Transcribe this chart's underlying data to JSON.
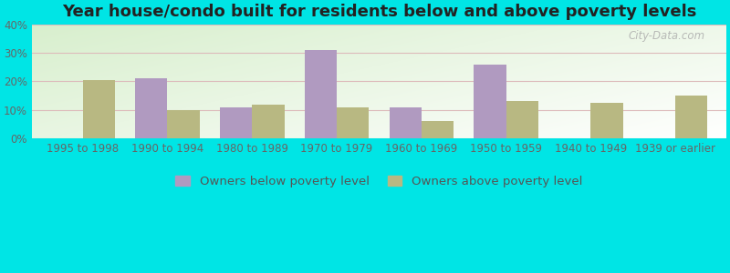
{
  "title": "Year house/condo built for residents below and above poverty levels",
  "categories": [
    "1995 to 1998",
    "1990 to 1994",
    "1980 to 1989",
    "1970 to 1979",
    "1960 to 1969",
    "1950 to 1959",
    "1940 to 1949",
    "1939 or earlier"
  ],
  "below_poverty": [
    0,
    21,
    11,
    31,
    11,
    26,
    0,
    0
  ],
  "above_poverty": [
    20.5,
    10,
    12,
    11,
    6,
    13,
    12.5,
    15
  ],
  "below_color": "#b09ac0",
  "above_color": "#b8b882",
  "outer_bg": "#00e5e5",
  "ylim": [
    0,
    40
  ],
  "yticks": [
    0,
    10,
    20,
    30,
    40
  ],
  "legend_below": "Owners below poverty level",
  "legend_above": "Owners above poverty level",
  "title_fontsize": 13,
  "tick_fontsize": 8.5,
  "legend_fontsize": 9.5,
  "bar_width": 0.38,
  "grid_color": "#ddbbbb",
  "watermark": "City-Data.com"
}
